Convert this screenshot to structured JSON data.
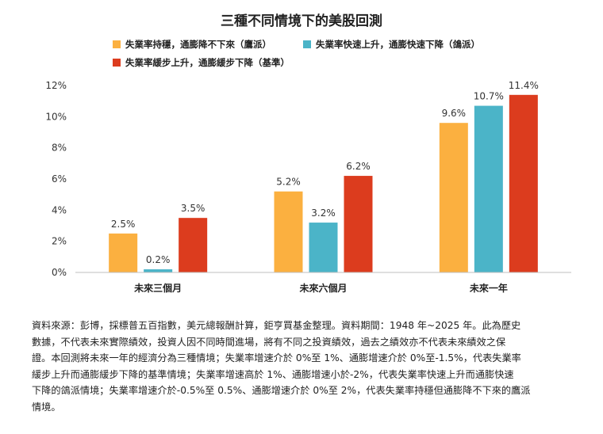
{
  "chart_data": {
    "type": "bar",
    "title": "三種不同情境下的美股回測",
    "categories": [
      "未來三個月",
      "未來六個月",
      "未來一年"
    ],
    "series": [
      {
        "name": "失業率持穩，通膨降不下來（鷹派）",
        "color": "#FBB040",
        "values": [
          2.5,
          5.2,
          9.6
        ],
        "labels": [
          "2.5%",
          "5.2%",
          "9.6%"
        ]
      },
      {
        "name": "失業率快速上升，通膨快速下降（鴿派）",
        "color": "#4BB4C8",
        "values": [
          0.2,
          3.2,
          10.7
        ],
        "labels": [
          "0.2%",
          "3.2%",
          "10.7%"
        ]
      },
      {
        "name": "失業率緩步上升，通膨緩步下降（基準）",
        "color": "#DC3C1E",
        "values": [
          3.5,
          6.2,
          11.4
        ],
        "labels": [
          "3.5%",
          "6.2%",
          "11.4%"
        ]
      }
    ],
    "yticks": [
      "0%",
      "2%",
      "4%",
      "6%",
      "8%",
      "10%",
      "12%"
    ],
    "ylim": [
      0,
      12
    ],
    "legend_position": "top",
    "grid": false
  },
  "source_lines": [
    "資料來源：彭博，採標普五百指數，美元總報酬計算，鉅亨買基金整理。資料期間：1948 年~2025 年。此為歷史",
    "數據，不代表未來實際績效，投資人因不同時間進場，將有不同之投資績效，過去之績效亦不代表未來績效之保",
    "證。本回測將未來一年的經濟分為三種情境；失業率增速介於 0%至 1%、通膨增速介於 0%至-1.5%，代表失業率",
    "緩步上升而通膨緩步下降的基準情境；失業率增速高於 1%、通膨增速小於-2%，代表失業率快速上升而通膨快速",
    "下降的鴿派情境；失業率增速介於-0.5%至 0.5%、通膨增速介於 0%至 2%，代表失業率持穩但通膨降不下來的鷹派",
    "情境。"
  ]
}
